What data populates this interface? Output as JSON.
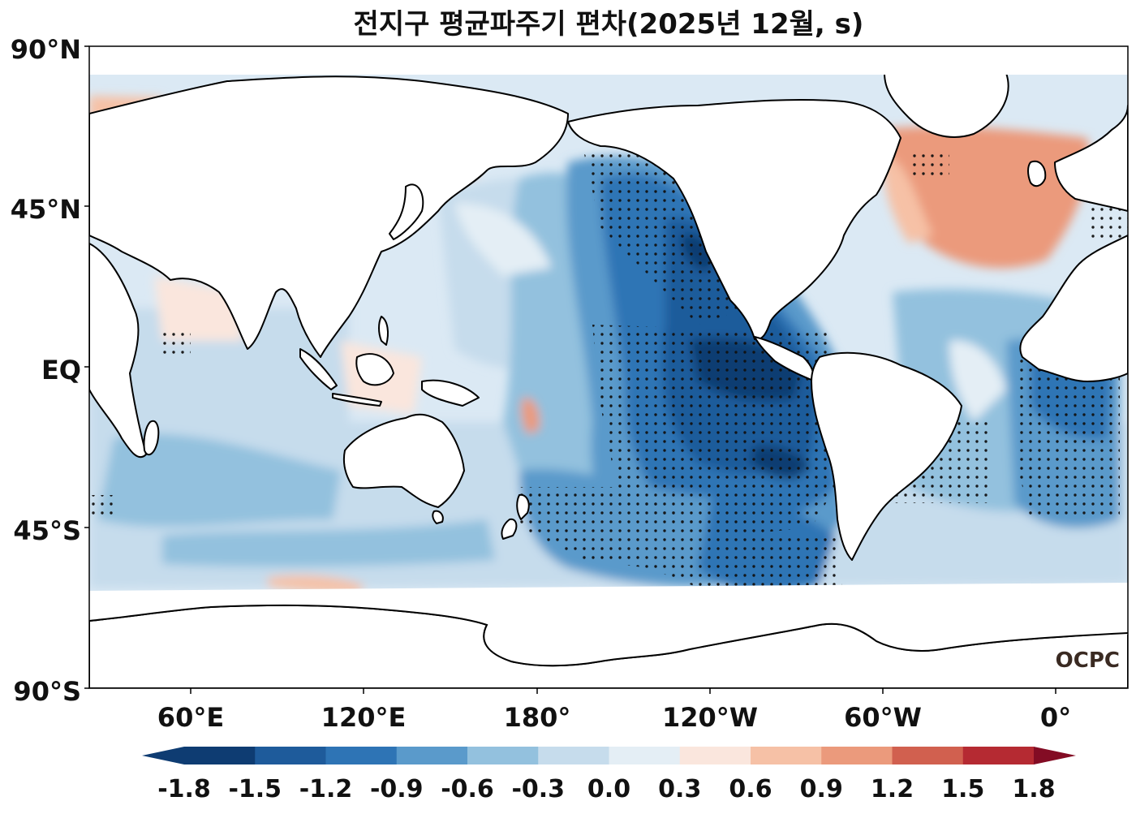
{
  "title": "전지구 평균파주기 편차(2025년 12월, s)",
  "logo": "OCPC",
  "map": {
    "lat_labels": [
      "90°N",
      "45°N",
      "EQ",
      "45°S",
      "90°S"
    ],
    "lon_labels": [
      "60°E",
      "120°E",
      "180°",
      "120°W",
      "60°W",
      "0°"
    ],
    "projection": "PlateCarree, central longitude 180°",
    "ocean_fill": "#dbe9f4",
    "land_fill": "#ffffff",
    "coastline_color": "#000000",
    "stippling": "dots mark significant anomalies"
  },
  "colorbar": {
    "tick_labels": [
      "-1.8",
      "-1.5",
      "-1.2",
      "-0.9",
      "-0.6",
      "-0.3",
      "0.0",
      "0.3",
      "0.6",
      "0.9",
      "1.2",
      "1.5",
      "1.8"
    ],
    "levels": [
      -1.8,
      -1.5,
      -1.2,
      -0.9,
      -0.6,
      -0.3,
      0.0,
      0.3,
      0.6,
      0.9,
      1.2,
      1.5,
      1.8
    ],
    "extend": "both",
    "colors": [
      "#0e3c72",
      "#1e5b9b",
      "#2e74b5",
      "#5a9acb",
      "#93c1de",
      "#c6dcec",
      "#e4eef5",
      "#fae6dd",
      "#f6c1a6",
      "#eb9a7c",
      "#d1604f",
      "#b52a32",
      "#830c24"
    ]
  }
}
